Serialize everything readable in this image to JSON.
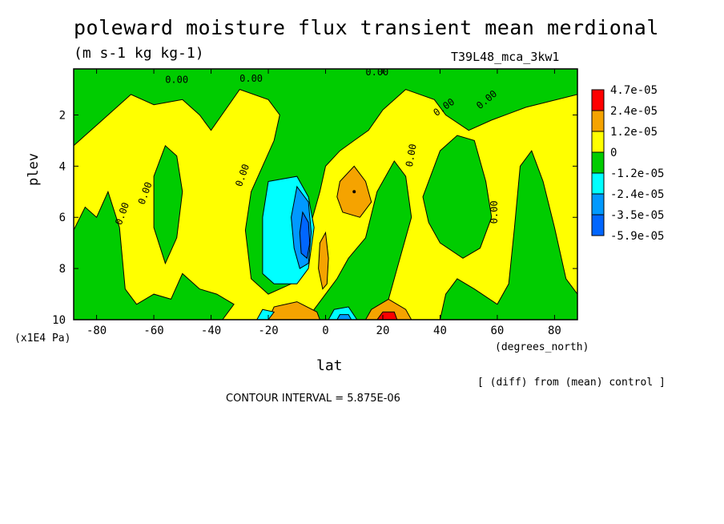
{
  "title": "poleward moisture flux transient mean merdional",
  "units": "(m s-1 kg kg-1)",
  "run_name": "T39L48_mca_3kw1",
  "ylabel": "plev",
  "yunits": "(x1E4 Pa)",
  "xlabel": "lat",
  "xunits": "(degrees_north)",
  "note": "[ (diff) from (mean) control ]",
  "contour_interval": "CONTOUR INTERVAL = 5.875E-06",
  "chart_data": {
    "type": "heatmap",
    "title": "poleward moisture flux transient mean merdional",
    "subtitle": "(m s-1 kg kg-1)",
    "xlabel": "lat",
    "ylabel": "plev",
    "x_units": "(degrees_north)",
    "y_units": "(x1E4 Pa)",
    "xlim": [
      -88,
      88
    ],
    "ylim": [
      10,
      0.2
    ],
    "x_ticks": [
      -80,
      -60,
      -40,
      -20,
      0,
      20,
      40,
      60,
      80
    ],
    "y_ticks": [
      2,
      4,
      6,
      8,
      10
    ],
    "contour_interval": 5.875e-06,
    "colorbar": {
      "levels": [
        "4.7e-05",
        "2.4e-05",
        "1.2e-05",
        "0",
        "-1.2e-05",
        "-2.4e-05",
        "-3.5e-05",
        "-5.9e-05"
      ],
      "colors": [
        "#ff0000",
        "#f5a300",
        "#ffff00",
        "#00cc00",
        "#00ffff",
        "#0099ff",
        "#0066ff"
      ]
    },
    "contour_labels": [
      "0.00"
    ],
    "features": [
      {
        "lat": -10,
        "plev": 6.5,
        "sign": "negative",
        "value": -5.9e-05
      },
      {
        "lat": 10,
        "plev": 5.0,
        "sign": "positive",
        "value": 2.4e-05
      },
      {
        "lat": 22,
        "plev": 9.9,
        "sign": "positive",
        "value": 4.7e-05
      },
      {
        "lat": -10,
        "plev": 9.8,
        "sign": "positive",
        "value": 2.4e-05
      },
      {
        "lat": 5,
        "plev": 9.9,
        "sign": "negative",
        "value": -3.5e-05
      }
    ]
  },
  "colors": {
    "red": "#ff0000",
    "orange": "#f5a300",
    "yellow": "#ffff00",
    "green": "#00cc00",
    "cyan": "#00ffff",
    "lightblue": "#0099ff",
    "blue": "#0066ff"
  }
}
